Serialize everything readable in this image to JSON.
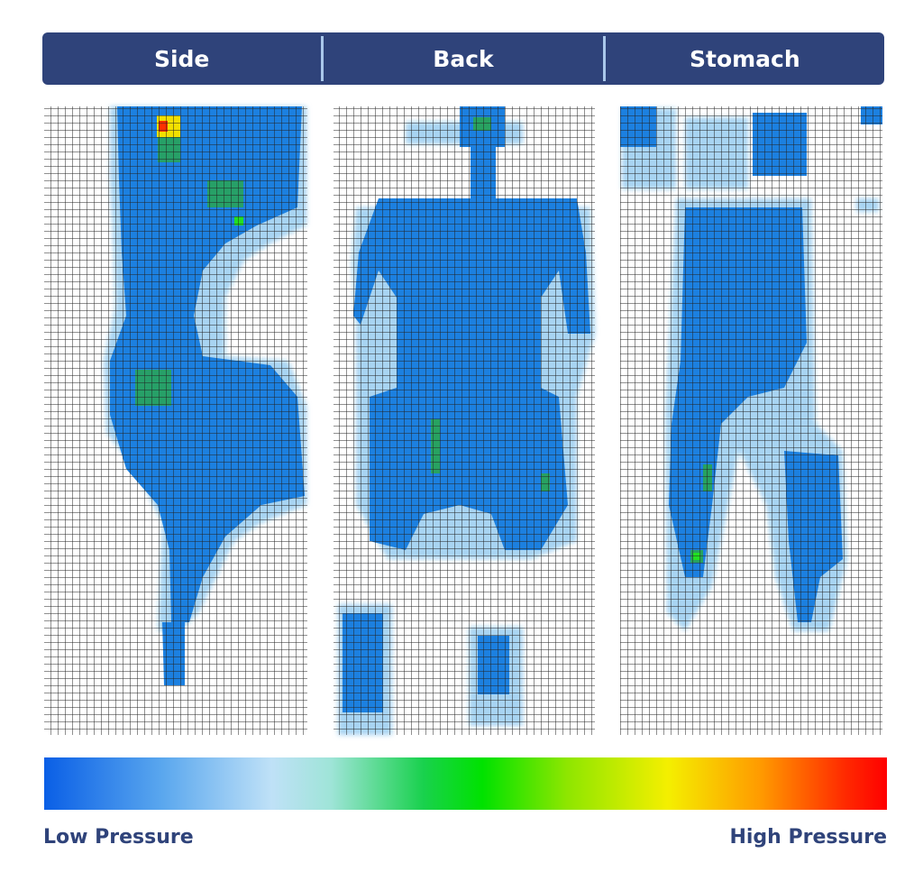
{
  "tabs": [
    "Side",
    "Back",
    "Stomach"
  ],
  "legend": {
    "low": "Low Pressure",
    "high": "High Pressure"
  }
}
